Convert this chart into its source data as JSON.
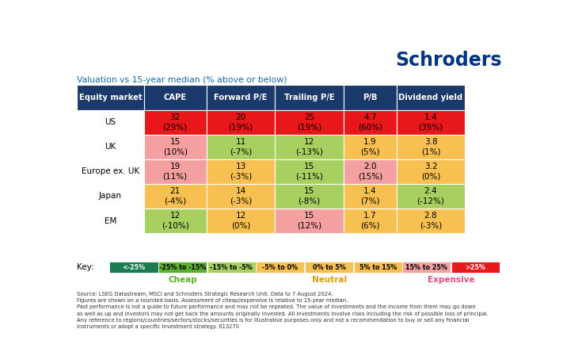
{
  "title": "Valuation vs 15-year median (% above or below)",
  "header": [
    "Equity market",
    "CAPE",
    "Forward P/E",
    "Trailing P/E",
    "P/B",
    "Dividend yield"
  ],
  "rows": [
    {
      "market": "US",
      "values": [
        "32\n(29%)",
        "20\n(19%)",
        "25\n(19%)",
        "4.7\n(60%)",
        "1.4\n(39%)"
      ],
      "colors": [
        "#e8181a",
        "#e8181a",
        "#e8181a",
        "#e8181a",
        "#e8181a"
      ]
    },
    {
      "market": "UK",
      "values": [
        "15\n(10%)",
        "11\n(-7%)",
        "12\n(-13%)",
        "1.9\n(5%)",
        "3.8\n(1%)"
      ],
      "colors": [
        "#f4a0a0",
        "#a8d060",
        "#a8d060",
        "#f8c050",
        "#f8c050"
      ]
    },
    {
      "market": "Europe ex. UK",
      "values": [
        "19\n(11%)",
        "13\n(-3%)",
        "15\n(-11%)",
        "2.0\n(15%)",
        "3.2\n(0%)"
      ],
      "colors": [
        "#f4a0a0",
        "#f8c050",
        "#a8d060",
        "#f4a0a0",
        "#f8c050"
      ]
    },
    {
      "market": "Japan",
      "values": [
        "21\n(-4%)",
        "14\n(-3%)",
        "15\n(-8%)",
        "1.4\n(7%)",
        "2.4\n(-12%)"
      ],
      "colors": [
        "#f8c050",
        "#f8c050",
        "#a8d060",
        "#f8c050",
        "#a8d060"
      ]
    },
    {
      "market": "EM",
      "values": [
        "12\n(-10%)",
        "12\n(0%)",
        "15\n(12%)",
        "1.7\n(6%)",
        "2.8\n(-3%)"
      ],
      "colors": [
        "#a8d060",
        "#f8c050",
        "#f4a0a0",
        "#f8c050",
        "#f8c050"
      ]
    }
  ],
  "header_bg": "#1b3a6b",
  "header_fg": "#ffffff",
  "key_colors": [
    {
      "label": "<-25%",
      "color": "#1a7a50",
      "text": "#ffffff"
    },
    {
      "label": "-25% to -15%",
      "color": "#5cb030",
      "text": "#000000"
    },
    {
      "label": "-15% to -5%",
      "color": "#a8d060",
      "text": "#000000"
    },
    {
      "label": "-5% to 0%",
      "color": "#f8c050",
      "text": "#000000"
    },
    {
      "label": "0% to 5%",
      "color": "#f8c050",
      "text": "#000000"
    },
    {
      "label": "5% to 15%",
      "color": "#f8c050",
      "text": "#000000"
    },
    {
      "label": "15% to 25%",
      "color": "#f4a0a0",
      "text": "#000000"
    },
    {
      "label": ">25%",
      "color": "#e8181a",
      "text": "#ffffff"
    }
  ],
  "schroders_color": "#003380",
  "title_color": "#1a6aaa",
  "source_text": "Source: LSEG Datastream, MSCI and Schroders Strategic Research Unit. Data to 7 August 2024.\nFigures are shown on a rounded basis. Assessment of cheap/expensive is relative to 15-year median.\nPast performance is not a guide to future performance and may not be repeated. The value of investments and the income from them may go down\nas well as up and investors may not get back the amounts originally invested. All investments involve risks including the risk of possible loss of principal.\nAny reference to regions/countries/sectors/stocks/securities is for illustrative purposes only and not a recommendation to buy or sell any financial\ninstruments or adopt a specific investment strategy. 613270"
}
